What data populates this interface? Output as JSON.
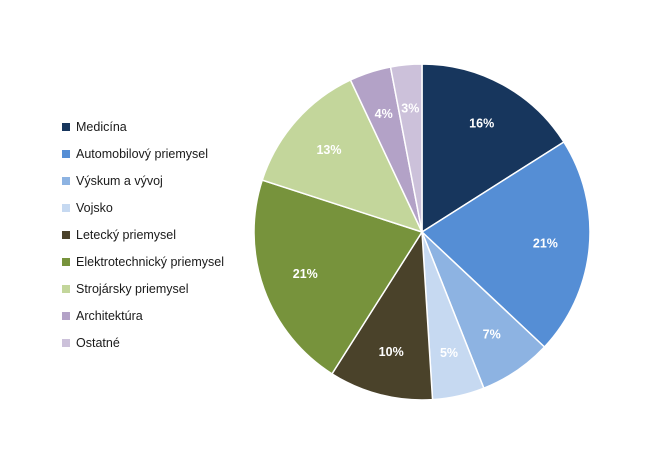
{
  "chart_data": {
    "type": "pie",
    "legend_position": "left",
    "slices": [
      {
        "name": "Medicína",
        "value": 16,
        "label": "16%",
        "color": "#17365d",
        "label_color": "#ffffff"
      },
      {
        "name": "Automobilový priemysel",
        "value": 21,
        "label": "21%",
        "color": "#558ed5",
        "label_color": "#ffffff"
      },
      {
        "name": "Výskum a vývoj",
        "value": 7,
        "label": "7%",
        "color": "#8db3e2",
        "label_color": "#ffffff"
      },
      {
        "name": "Vojsko",
        "value": 5,
        "label": "5%",
        "color": "#c6d9f1",
        "label_color": "#ffffff"
      },
      {
        "name": "Letecký priemysel",
        "value": 10,
        "label": "10%",
        "color": "#4a422a",
        "label_color": "#ffffff"
      },
      {
        "name": "Elektrotechnický priemysel",
        "value": 21,
        "label": "21%",
        "color": "#77933c",
        "label_color": "#ffffff"
      },
      {
        "name": "Strojársky priemysel",
        "value": 13,
        "label": "13%",
        "color": "#c3d69b",
        "label_color": "#ffffff"
      },
      {
        "name": "Architektúra",
        "value": 4,
        "label": "4%",
        "color": "#b3a2c7",
        "label_color": "#ffffff"
      },
      {
        "name": "Ostatné",
        "value": 3,
        "label": "3%",
        "color": "#ccc1da",
        "label_color": "#ffffff"
      }
    ]
  }
}
